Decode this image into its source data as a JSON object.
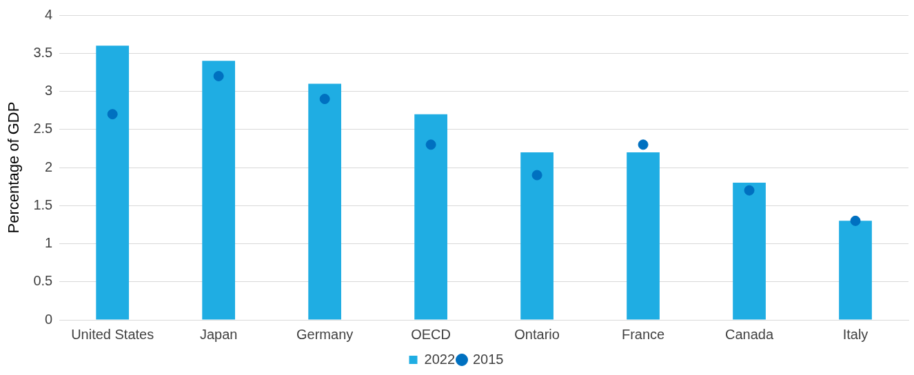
{
  "chart_data": {
    "type": "bar",
    "ylabel": "Percentage of GDP",
    "categories": [
      "United States",
      "Japan",
      "Germany",
      "OECD",
      "Ontario",
      "France",
      "Canada",
      "Italy"
    ],
    "series": [
      {
        "name": "2022",
        "color": "#1fade3",
        "values": [
          3.6,
          3.4,
          3.1,
          2.7,
          2.2,
          2.2,
          1.8,
          1.3
        ]
      },
      {
        "name": "2015",
        "type": "scatter",
        "color": "#0070c0",
        "x": [
          "United States",
          "Japan",
          "Germany",
          "OECD",
          "Ontario",
          "France",
          "Canada",
          "Italy"
        ],
        "values": [
          2.7,
          3.2,
          2.9,
          2.3,
          1.9,
          2.3,
          1.7,
          1.3
        ]
      }
    ],
    "ylim": [
      0,
      4
    ],
    "yticks": [
      0,
      0.5,
      1,
      1.5,
      2,
      2.5,
      3,
      3.5,
      4
    ],
    "grid": "y",
    "legend": "bottom",
    "marker": "circle"
  }
}
